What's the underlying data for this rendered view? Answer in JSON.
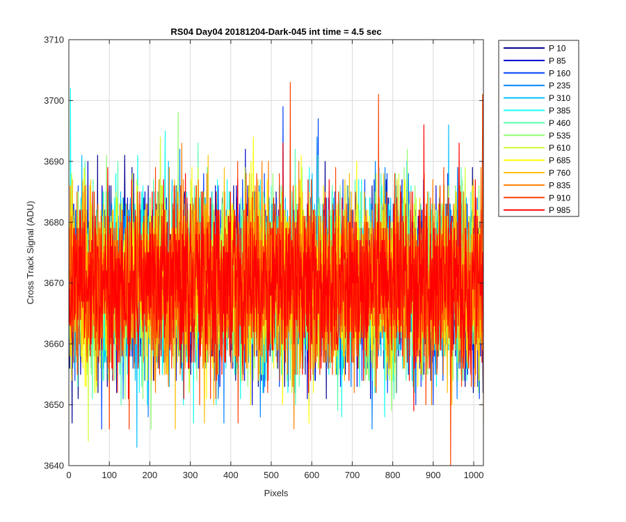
{
  "chart_data": {
    "type": "line",
    "title": "RS04 Day04 20181204-Dark-045 int time = 4.5 sec",
    "xlabel": "Pixels",
    "ylabel": "Cross Track Signal (ADU)",
    "xlim": [
      0,
      1024
    ],
    "ylim": [
      3640,
      3710
    ],
    "xticks": [
      0,
      100,
      200,
      300,
      400,
      500,
      600,
      700,
      800,
      900,
      1000
    ],
    "yticks": [
      3640,
      3650,
      3660,
      3670,
      3680,
      3690,
      3700,
      3710
    ],
    "grid": true,
    "legend_position": "outside-right",
    "noise": {
      "mean": 3670,
      "std": 7,
      "n_points": 1024
    },
    "series": [
      {
        "name": "P 10",
        "color": "#00008f"
      },
      {
        "name": "P 85",
        "color": "#0000cc"
      },
      {
        "name": "P 160",
        "color": "#0040ff"
      },
      {
        "name": "P 235",
        "color": "#0080ff"
      },
      {
        "name": "P 310",
        "color": "#00bfff"
      },
      {
        "name": "P 385",
        "color": "#10ffef"
      },
      {
        "name": "P 460",
        "color": "#50ffaf"
      },
      {
        "name": "P 535",
        "color": "#90ff70"
      },
      {
        "name": "P 610",
        "color": "#cfff30"
      },
      {
        "name": "P 685",
        "color": "#ffff00"
      },
      {
        "name": "P 760",
        "color": "#ffc000"
      },
      {
        "name": "P 835",
        "color": "#ff8000"
      },
      {
        "name": "P 910",
        "color": "#ff4000"
      },
      {
        "name": "P 985",
        "color": "#ff0000"
      }
    ],
    "annotations": [
      {
        "series": "P 385",
        "x": 4,
        "y": 3702
      },
      {
        "series": "P 910",
        "x": 547,
        "y": 3703
      },
      {
        "series": "P 910",
        "x": 765,
        "y": 3701
      },
      {
        "series": "P 910",
        "x": 1022,
        "y": 3701
      },
      {
        "series": "P 160",
        "x": 529,
        "y": 3699
      },
      {
        "series": "P 535",
        "x": 270,
        "y": 3698
      },
      {
        "series": "P 160",
        "x": 616,
        "y": 3697
      },
      {
        "series": "P 910",
        "x": 943,
        "y": 3640
      },
      {
        "series": "P 310",
        "x": 168,
        "y": 3643
      },
      {
        "series": "P 610",
        "x": 48,
        "y": 3644
      },
      {
        "series": "P 835",
        "x": 1024,
        "y": 3647
      },
      {
        "series": "P 10",
        "x": 8,
        "y": 3647
      }
    ]
  }
}
